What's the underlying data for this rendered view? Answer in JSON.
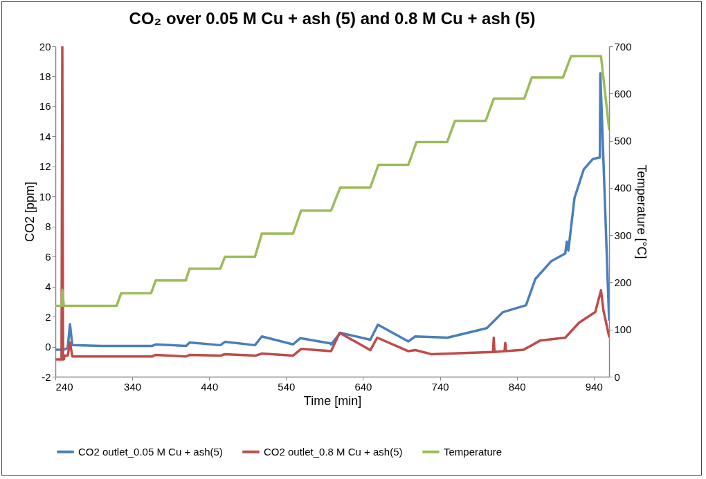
{
  "chart_data": {
    "type": "line",
    "title": "CO₂ over 0.05 M Cu + ash (5) and 0.8 M Cu + ash (5)",
    "xlabel": "Time [min]",
    "ylabel": "CO2 [ppm]",
    "y2label": "Temperature [°C]",
    "xlim": [
      240,
      960
    ],
    "xticks": [
      240,
      340,
      440,
      540,
      640,
      740,
      840,
      940
    ],
    "ylim": [
      -2,
      20
    ],
    "yticks": [
      -2,
      0,
      2,
      4,
      6,
      8,
      10,
      12,
      14,
      16,
      18,
      20
    ],
    "y2lim": [
      0,
      700
    ],
    "y2ticks": [
      0,
      100,
      200,
      300,
      400,
      500,
      600,
      700
    ],
    "grid": false,
    "legend": "bottom",
    "marker": "none",
    "line_style": "solid",
    "series": [
      {
        "name": "CO2 outlet_0.05 M Cu + ash(5)",
        "color": "#4a7ebb",
        "x": [
          240,
          251,
          256,
          259,
          262,
          300,
          366,
          370.5,
          410,
          414.6,
          454.5,
          460.5,
          499.5,
          508.5,
          549,
          558.6,
          600,
          598.5,
          610.5,
          649.5,
          659.4,
          699,
          708,
          750,
          801,
          822,
          852,
          864,
          885,
          903,
          905,
          907,
          915,
          927,
          939,
          948,
          948.6,
          960
        ],
        "values": [
          -0.2,
          -0.2,
          -0.1,
          1.5,
          0.1,
          0.05,
          0.05,
          0.15,
          0.05,
          0.28,
          0.1,
          0.32,
          0.1,
          0.68,
          0.15,
          0.57,
          0.2,
          0.15,
          0.92,
          0.46,
          1.46,
          0.35,
          0.68,
          0.6,
          1.23,
          2.3,
          2.76,
          4.5,
          5.7,
          6.2,
          7,
          6.4,
          9.9,
          11.8,
          12.5,
          12.6,
          18.2,
          1.8
        ]
      },
      {
        "name": "CO2 outlet_0.8 M Cu + ash(5)",
        "color": "#be4b48",
        "x": [
          240,
          248,
          249,
          250,
          251,
          252,
          256,
          259,
          262,
          366,
          370,
          410,
          415,
          455,
          460,
          500,
          508.5,
          549,
          559.5,
          598.5,
          609.6,
          649.5,
          658.5,
          699,
          708,
          729,
          809,
          810,
          811,
          824,
          825,
          826,
          849,
          870,
          903,
          921,
          942,
          949.5,
          952.5,
          960
        ],
        "values": [
          -0.85,
          -0.85,
          20,
          -0.85,
          -0.85,
          -0.6,
          -0.6,
          0.28,
          -0.65,
          -0.65,
          -0.55,
          -0.65,
          -0.55,
          -0.6,
          -0.5,
          -0.6,
          -0.46,
          -0.6,
          -0.15,
          -0.3,
          0.92,
          -0.23,
          0.6,
          -0.3,
          -0.23,
          -0.5,
          -0.35,
          0.6,
          -0.35,
          -0.3,
          0.25,
          -0.3,
          -0.2,
          0.4,
          0.6,
          1.6,
          2.3,
          3.76,
          2.45,
          0.67
        ]
      },
      {
        "name": "Temperature",
        "color": "#9bbb59",
        "axis": "y2",
        "x": [
          240,
          248,
          249,
          251,
          319.5,
          325.6,
          364.5,
          370.5,
          409.5,
          414.6,
          454.5,
          460.5,
          499.5,
          508.5,
          549,
          559.5,
          598.5,
          610.5,
          649.5,
          660,
          699,
          709.5,
          749.4,
          759.6,
          799.5,
          810,
          849.6,
          859.5,
          900,
          910.5,
          949.5,
          960
        ],
        "values": [
          150,
          150,
          184,
          150,
          150,
          177,
          177,
          204,
          204,
          229,
          229,
          254,
          254,
          303,
          303,
          352,
          352,
          401,
          401,
          449,
          449,
          497,
          497,
          542,
          542,
          589,
          589,
          634,
          634,
          679,
          679,
          525
        ]
      }
    ]
  }
}
